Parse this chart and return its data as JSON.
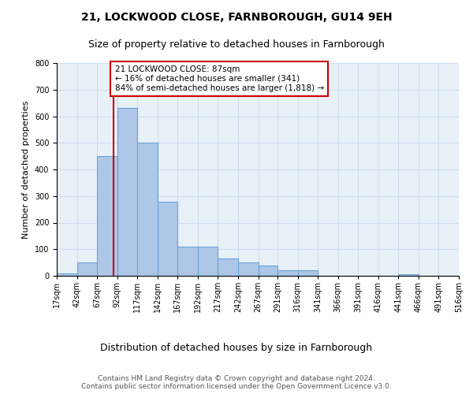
{
  "title1": "21, LOCKWOOD CLOSE, FARNBOROUGH, GU14 9EH",
  "title2": "Size of property relative to detached houses in Farnborough",
  "xlabel": "Distribution of detached houses by size in Farnborough",
  "ylabel": "Number of detached properties",
  "bin_edges": [
    17,
    42,
    67,
    92,
    117,
    142,
    167,
    192,
    217,
    242,
    267,
    291,
    316,
    341,
    366,
    391,
    416,
    441,
    466,
    491,
    516
  ],
  "bar_heights": [
    10,
    50,
    450,
    630,
    500,
    280,
    110,
    110,
    65,
    50,
    40,
    20,
    20,
    1,
    0,
    0,
    0,
    5,
    0,
    0
  ],
  "bar_color": "#aec6e8",
  "bar_edge_color": "#5a9fd4",
  "subject_value": 87,
  "red_line_color": "#cc0000",
  "annotation_text": "21 LOCKWOOD CLOSE: 87sqm\n← 16% of detached houses are smaller (341)\n84% of semi-detached houses are larger (1,818) →",
  "annotation_box_color": "#ffffff",
  "annotation_box_edge": "#cc0000",
  "ylim": [
    0,
    800
  ],
  "yticks": [
    0,
    100,
    200,
    300,
    400,
    500,
    600,
    700,
    800
  ],
  "grid_color": "#ccddee",
  "background_color": "#e8f0f8",
  "footer_text": "Contains HM Land Registry data © Crown copyright and database right 2024.\nContains public sector information licensed under the Open Government Licence v3.0.",
  "title1_fontsize": 10,
  "title2_fontsize": 9,
  "xlabel_fontsize": 9,
  "ylabel_fontsize": 8,
  "tick_fontsize": 7,
  "annotation_fontsize": 7.5,
  "footer_fontsize": 6.5
}
